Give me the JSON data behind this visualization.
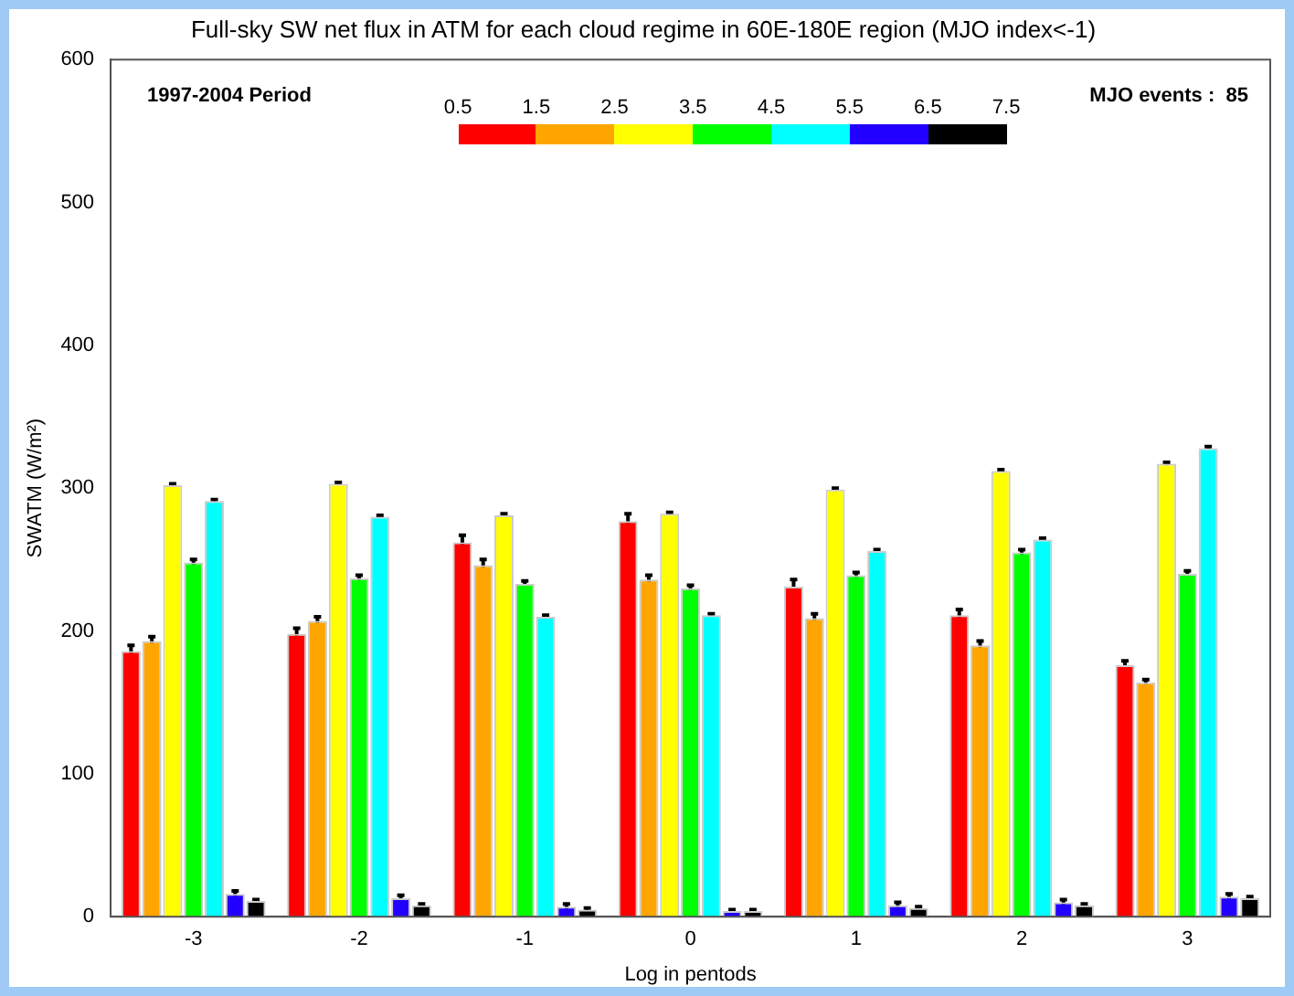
{
  "chart_data": {
    "type": "bar",
    "title": "Full-sky SW net flux in ATM for each cloud regime in 60E-180E region (MJO index<-1)",
    "xlabel": "Log in pentods",
    "ylabel": "SWATM (W/m²)",
    "categories": [
      "-3",
      "-2",
      "-1",
      "0",
      "1",
      "2",
      "3"
    ],
    "series": [
      {
        "color": "#ff0000",
        "values": [
          186,
          198,
          262,
          277,
          231,
          211,
          176
        ],
        "errors": [
          4,
          4,
          5,
          5,
          5,
          4,
          3
        ]
      },
      {
        "color": "#ffa500",
        "values": [
          193,
          207,
          246,
          236,
          209,
          190,
          164
        ],
        "errors": [
          3,
          3,
          4,
          3,
          3,
          3,
          2
        ]
      },
      {
        "color": "#ffff00",
        "values": [
          302,
          303,
          281,
          282,
          299,
          312,
          317
        ],
        "errors": [
          1,
          1,
          1,
          1,
          1,
          1,
          1
        ]
      },
      {
        "color": "#00ff00",
        "values": [
          248,
          237,
          233,
          230,
          239,
          255,
          240
        ],
        "errors": [
          2,
          2,
          2,
          2,
          2,
          2,
          2
        ]
      },
      {
        "color": "#00ffff",
        "values": [
          291,
          280,
          210,
          211,
          256,
          264,
          328
        ],
        "errors": [
          1,
          1,
          1,
          1,
          1,
          1,
          1
        ]
      },
      {
        "color": "#2200ff",
        "values": [
          16,
          13,
          7,
          4,
          8,
          10,
          14
        ],
        "errors": [
          2,
          2,
          2,
          1,
          2,
          2,
          2
        ]
      },
      {
        "color": "#000000",
        "values": [
          11,
          8,
          5,
          4,
          6,
          8,
          13
        ],
        "errors": [
          1,
          1,
          1,
          1,
          1,
          1,
          1
        ]
      }
    ],
    "ylim": [
      0,
      600
    ],
    "yticks": [
      0,
      100,
      200,
      300,
      400,
      500,
      600
    ],
    "grid": false,
    "legend": false,
    "annotations": [
      "1997-2004 Period",
      "MJO events :  85",
      "0.5",
      "1.5",
      "2.5",
      "3.5",
      "4.5",
      "5.5",
      "6.5",
      "7.5"
    ]
  }
}
